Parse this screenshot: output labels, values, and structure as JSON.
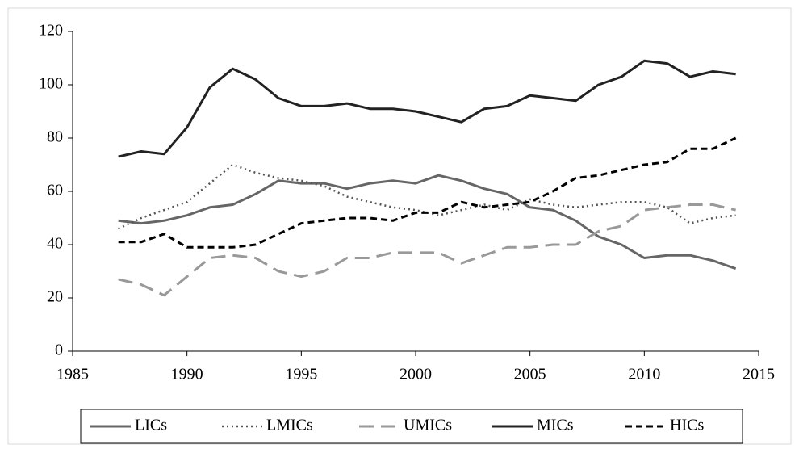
{
  "chart_data": {
    "type": "line",
    "x": [
      1987,
      1988,
      1989,
      1990,
      1991,
      1992,
      1993,
      1994,
      1995,
      1996,
      1997,
      1998,
      1999,
      2000,
      2001,
      2002,
      2003,
      2004,
      2005,
      2006,
      2007,
      2008,
      2009,
      2010,
      2011,
      2012,
      2013,
      2014
    ],
    "series": [
      {
        "name": "LICs",
        "color": "#666666",
        "dash": "solid",
        "values": [
          49,
          48,
          49,
          51,
          54,
          55,
          59,
          64,
          63,
          63,
          61,
          63,
          64,
          63,
          66,
          64,
          61,
          59,
          54,
          53,
          49,
          43,
          40,
          35,
          36,
          36,
          34,
          31
        ]
      },
      {
        "name": "LMICs",
        "color": "#555555",
        "dash": "dotted",
        "values": [
          46,
          50,
          53,
          56,
          63,
          70,
          67,
          65,
          64,
          62,
          58,
          56,
          54,
          53,
          51,
          53,
          55,
          53,
          57,
          55,
          54,
          55,
          56,
          56,
          54,
          48,
          50,
          51
        ]
      },
      {
        "name": "UMICs",
        "color": "#999999",
        "dash": "dashed",
        "values": [
          27,
          25,
          21,
          28,
          35,
          36,
          35,
          30,
          28,
          30,
          35,
          35,
          37,
          37,
          37,
          33,
          36,
          39,
          39,
          40,
          40,
          45,
          47,
          53,
          54,
          55,
          55,
          53
        ]
      },
      {
        "name": "MICs",
        "color": "#222222",
        "dash": "solid",
        "values": [
          73,
          75,
          74,
          84,
          99,
          106,
          102,
          95,
          92,
          92,
          93,
          91,
          91,
          90,
          88,
          86,
          91,
          92,
          96,
          95,
          94,
          100,
          103,
          109,
          108,
          103,
          105,
          104
        ]
      },
      {
        "name": "HICs",
        "color": "#000000",
        "dash": "shortdash",
        "values": [
          41,
          41,
          44,
          39,
          39,
          39,
          40,
          44,
          48,
          49,
          50,
          50,
          49,
          52,
          52,
          56,
          54,
          55,
          56,
          60,
          65,
          66,
          68,
          70,
          71,
          76,
          76,
          80
        ]
      }
    ],
    "xlim": [
      1985,
      2015
    ],
    "xticks": [
      1985,
      1990,
      1995,
      2000,
      2005,
      2010,
      2015
    ],
    "ylim": [
      0,
      120
    ],
    "yticks": [
      0,
      20,
      40,
      60,
      80,
      100,
      120
    ],
    "legend": "bottom"
  }
}
